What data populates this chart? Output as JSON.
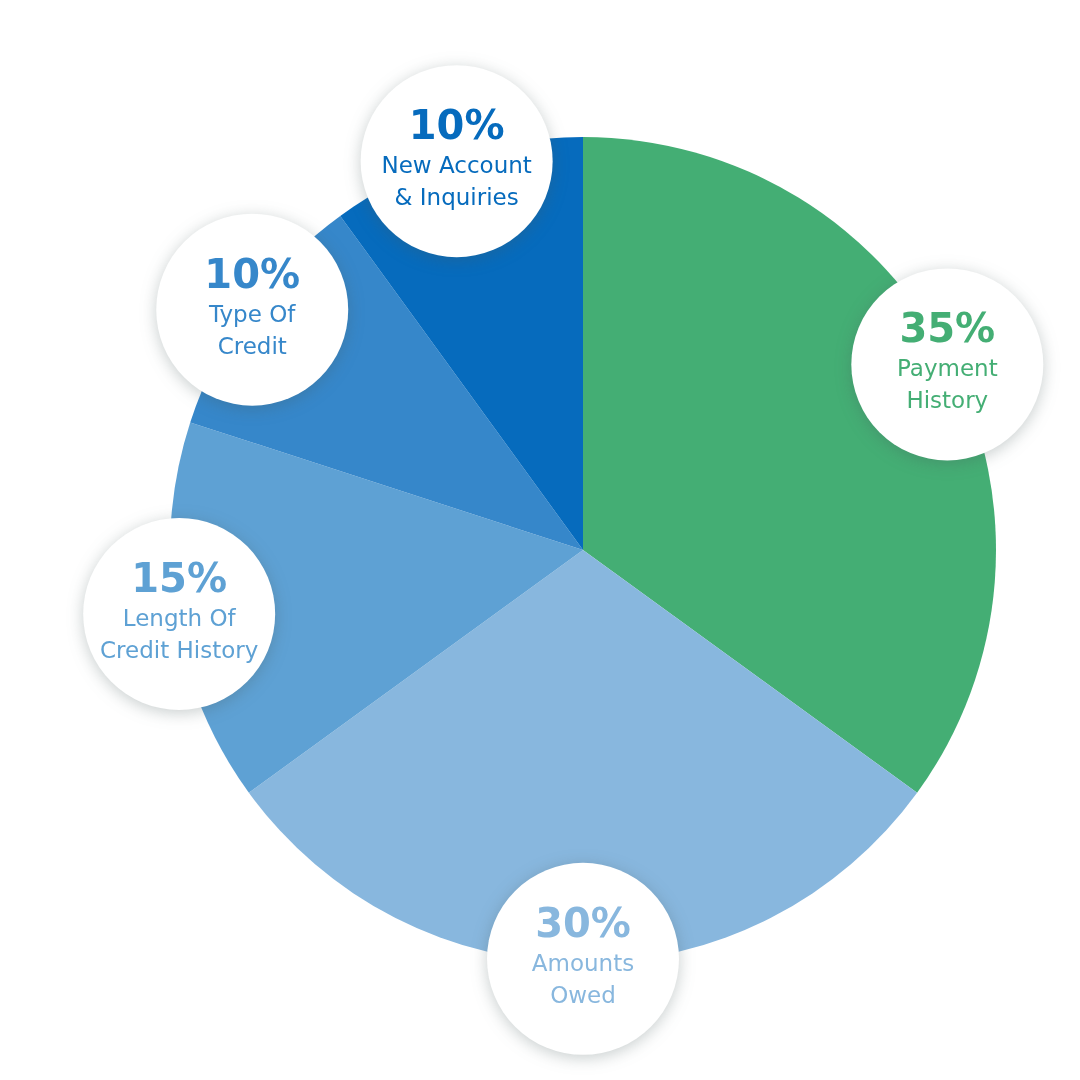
{
  "chart_data": {
    "type": "pie",
    "categories": [
      "Payment History",
      "Amounts Owed",
      "Length Of Credit History",
      "Type Of Credit",
      "New Account & Inquiries"
    ],
    "values": [
      35,
      30,
      15,
      10,
      10
    ],
    "colors": [
      "#44ae74",
      "#88b7de",
      "#5ea1d4",
      "#3687ca",
      "#066bbd"
    ],
    "value_labels": [
      "35%",
      "30%",
      "15%",
      "10%",
      "10%"
    ]
  }
}
